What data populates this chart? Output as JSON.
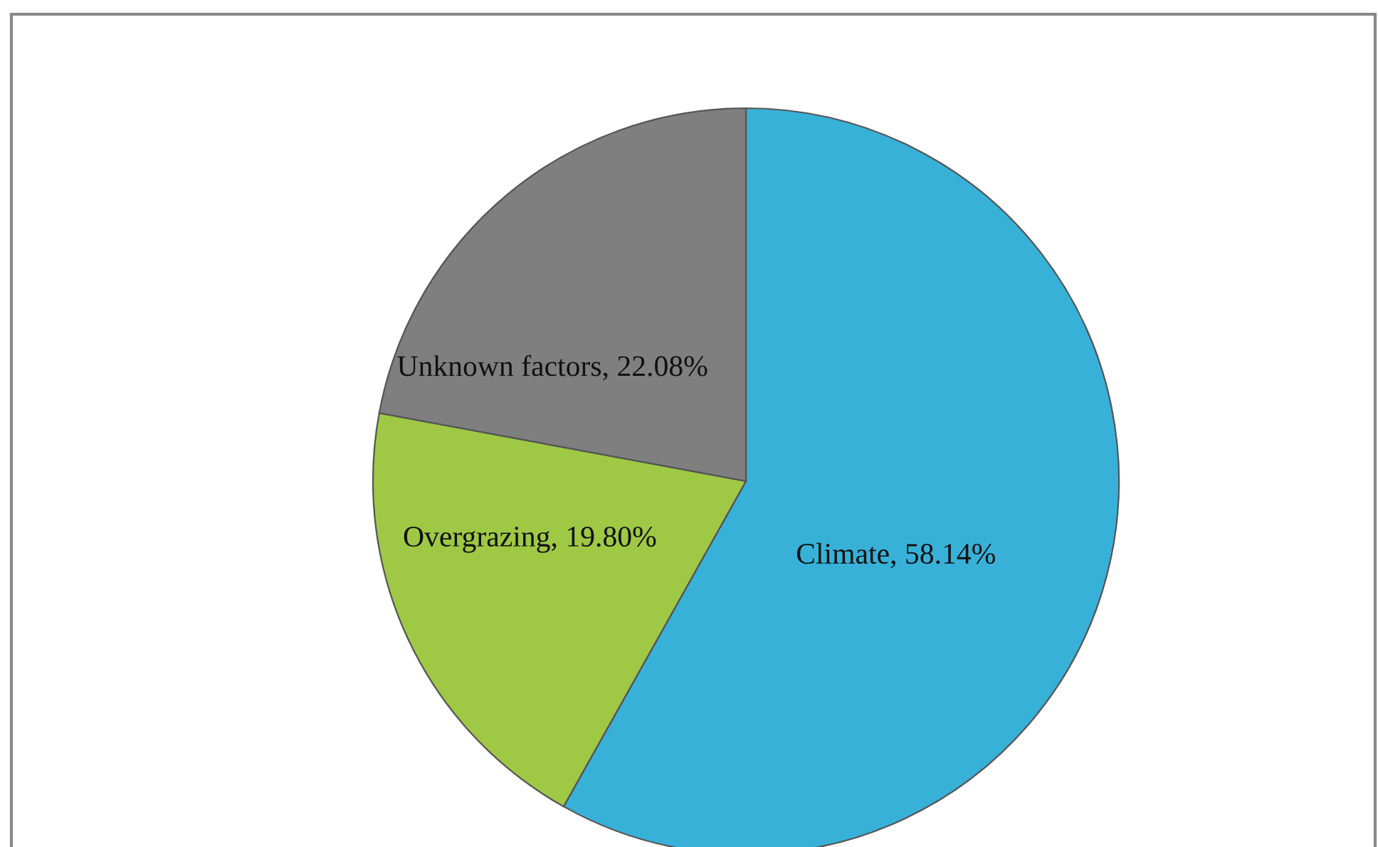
{
  "chart_data": {
    "type": "pie",
    "categories": [
      "Climate",
      "Overgrazing",
      "Unknown factors"
    ],
    "values": [
      58.14,
      19.8,
      22.08
    ],
    "colors": [
      "#38b1d9",
      "#9fc845",
      "#7f7f7f"
    ],
    "value_labels": [
      "58.14%",
      "19.80%",
      "22.08%"
    ]
  }
}
